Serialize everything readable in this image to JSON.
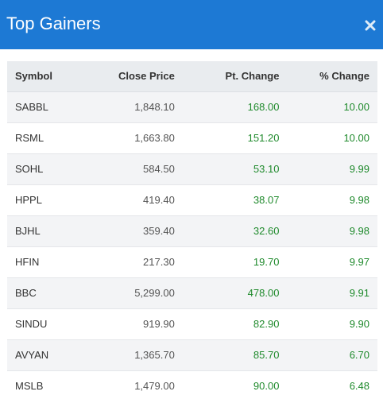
{
  "modal": {
    "title": "Top Gainers",
    "close_icon": "close-icon"
  },
  "colors": {
    "header_bg": "#1d79d4",
    "positive": "#1f8a2c",
    "header_row_bg": "#e9ecef"
  },
  "table": {
    "headers": {
      "symbol": "Symbol",
      "close_price": "Close Price",
      "pt_change": "Pt. Change",
      "pct_change": "% Change"
    },
    "rows": [
      {
        "symbol": "SABBL",
        "close_price": "1,848.10",
        "pt_change": "168.00",
        "pct_change": "10.00"
      },
      {
        "symbol": "RSML",
        "close_price": "1,663.80",
        "pt_change": "151.20",
        "pct_change": "10.00"
      },
      {
        "symbol": "SOHL",
        "close_price": "584.50",
        "pt_change": "53.10",
        "pct_change": "9.99"
      },
      {
        "symbol": "HPPL",
        "close_price": "419.40",
        "pt_change": "38.07",
        "pct_change": "9.98"
      },
      {
        "symbol": "BJHL",
        "close_price": "359.40",
        "pt_change": "32.60",
        "pct_change": "9.98"
      },
      {
        "symbol": "HFIN",
        "close_price": "217.30",
        "pt_change": "19.70",
        "pct_change": "9.97"
      },
      {
        "symbol": "BBC",
        "close_price": "5,299.00",
        "pt_change": "478.00",
        "pct_change": "9.91"
      },
      {
        "symbol": "SINDU",
        "close_price": "919.90",
        "pt_change": "82.90",
        "pct_change": "9.90"
      },
      {
        "symbol": "AVYAN",
        "close_price": "1,365.70",
        "pt_change": "85.70",
        "pct_change": "6.70"
      },
      {
        "symbol": "MSLB",
        "close_price": "1,479.00",
        "pt_change": "90.00",
        "pct_change": "6.48"
      }
    ]
  }
}
